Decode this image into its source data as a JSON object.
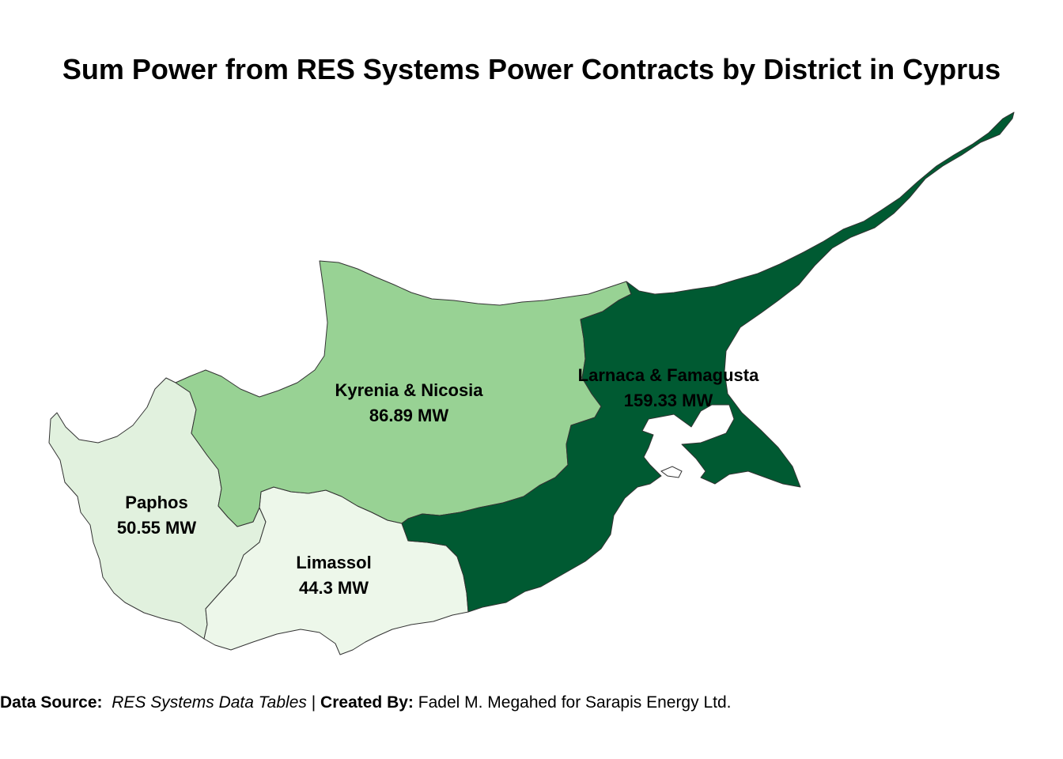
{
  "title": "Sum Power from RES Systems Power Contracts by District in Cyprus",
  "districts": [
    {
      "name": "Kyrenia & Nicosia",
      "value_label": "86.89 MW",
      "value_mw": 86.89,
      "fill": "#98d294"
    },
    {
      "name": "Larnaca & Famagusta",
      "value_label": "159.33 MW",
      "value_mw": 159.33,
      "fill": "#005a32"
    },
    {
      "name": "Paphos",
      "value_label": "50.55 MW",
      "value_mw": 50.55,
      "fill": "#e1f1de"
    },
    {
      "name": "Limassol",
      "value_label": "44.3 MW",
      "value_mw": 44.3,
      "fill": "#edf7ea"
    }
  ],
  "caption": {
    "source_label": "Data Source:",
    "source_text": "RES Systems Data Tables",
    "separator": "|",
    "created_label": "Created By:",
    "created_text": "Fadel M. Megahed for Sarapis Energy Ltd."
  }
}
